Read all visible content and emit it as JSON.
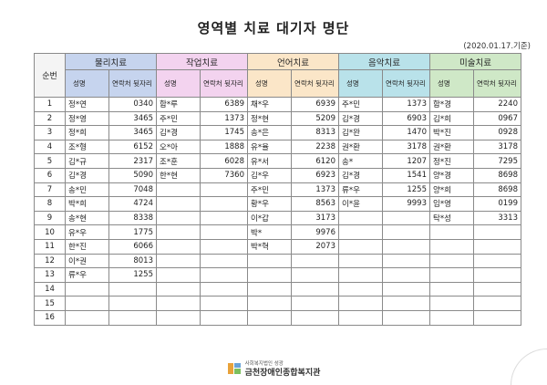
{
  "title": "영역별 치료 대기자 명단",
  "as_of": "(2020.01.17.기준)",
  "headers": {
    "seq": "순번",
    "name": "성명",
    "phone": "연락처 뒷자리"
  },
  "groups": [
    {
      "label": "물리치료",
      "color": "#c6d4ee"
    },
    {
      "label": "작업치료",
      "color": "#f3d3ef"
    },
    {
      "label": "언어치료",
      "color": "#fbe6c8"
    },
    {
      "label": "음악치료",
      "color": "#b9e2ea"
    },
    {
      "label": "미술치료",
      "color": "#cfe8c7"
    }
  ],
  "rows": [
    {
      "seq": "1",
      "cells": [
        [
          "정*연",
          "0340"
        ],
        [
          "함*루",
          "6389"
        ],
        [
          "채*우",
          "6939"
        ],
        [
          "주*민",
          "1373"
        ],
        [
          "함*경",
          "2240"
        ]
      ]
    },
    {
      "seq": "2",
      "cells": [
        [
          "정*영",
          "3465"
        ],
        [
          "주*민",
          "1373"
        ],
        [
          "정*현",
          "5209"
        ],
        [
          "김*경",
          "6903"
        ],
        [
          "김*희",
          "0967"
        ]
      ]
    },
    {
      "seq": "3",
      "cells": [
        [
          "정*희",
          "3465"
        ],
        [
          "김*경",
          "1745"
        ],
        [
          "송*은",
          "8313"
        ],
        [
          "김*완",
          "1470"
        ],
        [
          "박*진",
          "0928"
        ]
      ]
    },
    {
      "seq": "4",
      "cells": [
        [
          "조*형",
          "6152"
        ],
        [
          "오*아",
          "1888"
        ],
        [
          "유*율",
          "2238"
        ],
        [
          "권*환",
          "3178"
        ],
        [
          "권*환",
          "3178"
        ]
      ]
    },
    {
      "seq": "5",
      "cells": [
        [
          "김*규",
          "2317"
        ],
        [
          "조*훈",
          "6028"
        ],
        [
          "유*서",
          "6120"
        ],
        [
          "송*",
          "1207"
        ],
        [
          "정*진",
          "7295"
        ]
      ]
    },
    {
      "seq": "6",
      "cells": [
        [
          "김*경",
          "5090"
        ],
        [
          "한*현",
          "7360"
        ],
        [
          "김*우",
          "6923"
        ],
        [
          "김*경",
          "1541"
        ],
        [
          "양*경",
          "8698"
        ]
      ]
    },
    {
      "seq": "7",
      "cells": [
        [
          "송*민",
          "7048"
        ],
        [
          "",
          ""
        ],
        [
          "주*민",
          "1373"
        ],
        [
          "류*우",
          "1255"
        ],
        [
          "양*희",
          "8698"
        ]
      ]
    },
    {
      "seq": "8",
      "cells": [
        [
          "박*희",
          "4724"
        ],
        [
          "",
          ""
        ],
        [
          "황*우",
          "8563"
        ],
        [
          "이*윤",
          "9993"
        ],
        [
          "임*영",
          "0199"
        ]
      ]
    },
    {
      "seq": "9",
      "cells": [
        [
          "송*현",
          "8338"
        ],
        [
          "",
          ""
        ],
        [
          "이*갑",
          "3173"
        ],
        [
          "",
          ""
        ],
        [
          "탁*성",
          "3313"
        ]
      ]
    },
    {
      "seq": "10",
      "cells": [
        [
          "유*우",
          "1775"
        ],
        [
          "",
          ""
        ],
        [
          "박*",
          "9976"
        ],
        [
          "",
          ""
        ],
        [
          "",
          ""
        ]
      ]
    },
    {
      "seq": "11",
      "cells": [
        [
          "한*진",
          "6066"
        ],
        [
          "",
          ""
        ],
        [
          "박*혁",
          "2073"
        ],
        [
          "",
          ""
        ],
        [
          "",
          ""
        ]
      ]
    },
    {
      "seq": "12",
      "cells": [
        [
          "이*권",
          "8013"
        ],
        [
          "",
          ""
        ],
        [
          "",
          ""
        ],
        [
          "",
          ""
        ],
        [
          "",
          ""
        ]
      ]
    },
    {
      "seq": "13",
      "cells": [
        [
          "류*우",
          "1255"
        ],
        [
          "",
          ""
        ],
        [
          "",
          ""
        ],
        [
          "",
          ""
        ],
        [
          "",
          ""
        ]
      ]
    },
    {
      "seq": "14",
      "cells": [
        [
          "",
          ""
        ],
        [
          "",
          ""
        ],
        [
          "",
          ""
        ],
        [
          "",
          ""
        ],
        [
          "",
          ""
        ]
      ]
    },
    {
      "seq": "15",
      "cells": [
        [
          "",
          ""
        ],
        [
          "",
          ""
        ],
        [
          "",
          ""
        ],
        [
          "",
          ""
        ],
        [
          "",
          ""
        ]
      ]
    },
    {
      "seq": "16",
      "cells": [
        [
          "",
          ""
        ],
        [
          "",
          ""
        ],
        [
          "",
          ""
        ],
        [
          "",
          ""
        ],
        [
          "",
          ""
        ]
      ]
    }
  ],
  "footer": {
    "org_sub": "사회복지법인 성광",
    "org_name": "금천장애인종합복지관",
    "logo_icon": "organization-logo-icon"
  }
}
